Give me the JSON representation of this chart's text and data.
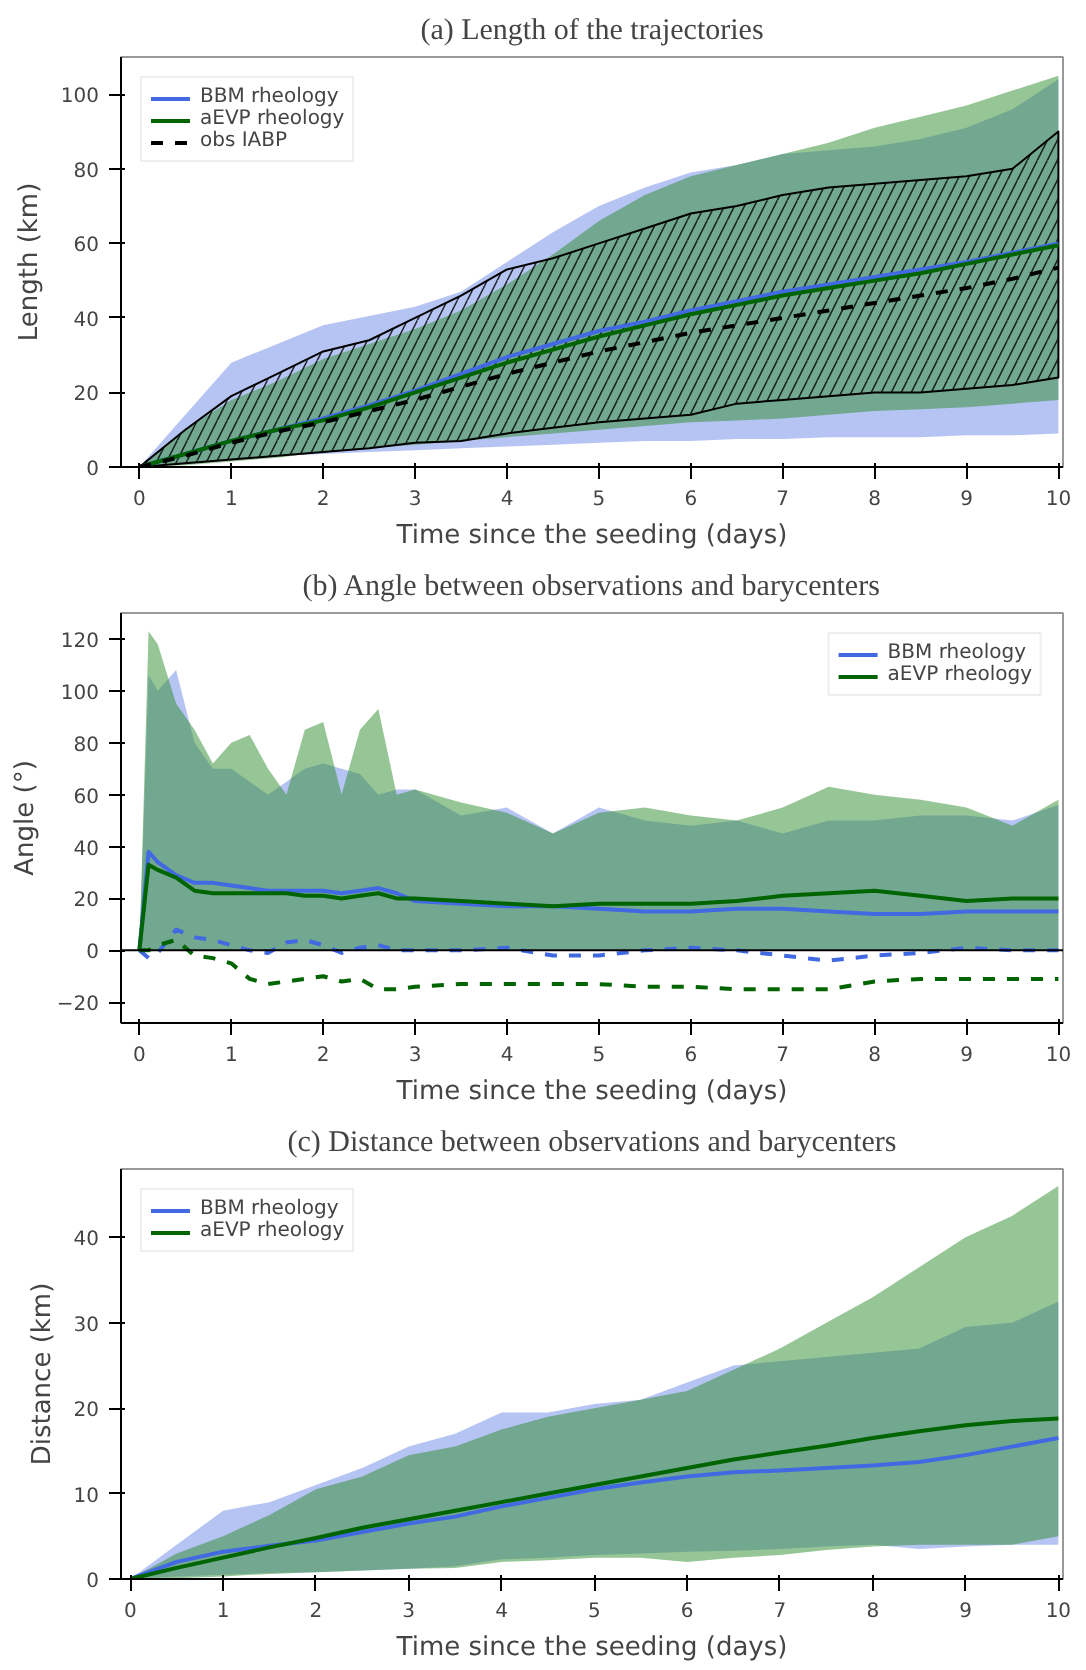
{
  "chart_data": [
    {
      "type": "line",
      "title": "(a) Length of the trajectories",
      "xlabel": "Time since the seeding (days)",
      "ylabel": "Length (km)",
      "xlim": [
        -0.2,
        10.05
      ],
      "ylim": [
        0,
        110
      ],
      "xticks": [
        0,
        1,
        2,
        3,
        4,
        5,
        6,
        7,
        8,
        9,
        10
      ],
      "yticks": [
        0,
        20,
        40,
        60,
        80,
        100
      ],
      "grid": false,
      "legend": "top left",
      "x": [
        0,
        0.5,
        1,
        1.5,
        2,
        2.5,
        3,
        3.5,
        4,
        4.5,
        5,
        5.5,
        6,
        6.5,
        7,
        7.5,
        8,
        8.5,
        9,
        9.5,
        10
      ],
      "series": [
        {
          "name": "BBM rheology",
          "color": "#4169e1",
          "line_style": "solid",
          "values": [
            0,
            3.5,
            7,
            10,
            13,
            16.5,
            20.5,
            25,
            29.5,
            33,
            36.5,
            39,
            42,
            44.5,
            47,
            49,
            51,
            53,
            55,
            57.5,
            60
          ],
          "lower": [
            0,
            1,
            2,
            3,
            3.5,
            4,
            4.5,
            5,
            5.5,
            6,
            6.5,
            7,
            7,
            7.5,
            7.5,
            8,
            8,
            8,
            8.5,
            8.5,
            9
          ],
          "upper": [
            0,
            14,
            28,
            33,
            38,
            40.5,
            43,
            47,
            55,
            63,
            70,
            75,
            79,
            81,
            84,
            85,
            86,
            88,
            91,
            96,
            104
          ]
        },
        {
          "name": "aEVP rheology",
          "color": "#006400",
          "line_style": "solid",
          "values": [
            0,
            3.5,
            7,
            10,
            12.5,
            16,
            20,
            24,
            28,
            31.5,
            35,
            38,
            41,
            43.5,
            46,
            48,
            50,
            52,
            54.5,
            57,
            59.5
          ],
          "lower": [
            0,
            0.5,
            1.5,
            2.5,
            4,
            5,
            6,
            7,
            8,
            9,
            10,
            11,
            12,
            12.5,
            13,
            14,
            15,
            15.5,
            16,
            17,
            18
          ],
          "upper": [
            0,
            10,
            18,
            23,
            29,
            33,
            37,
            42,
            49,
            57,
            66,
            73,
            78,
            81,
            84,
            87,
            91,
            94,
            97,
            101,
            105
          ]
        },
        {
          "name": "obs IABP",
          "color": "#000000",
          "line_style": "dashed",
          "values": [
            0,
            3,
            6.5,
            9.5,
            12,
            15,
            18,
            21.5,
            25,
            28,
            31,
            33.5,
            36,
            38,
            40,
            42,
            44,
            46,
            48,
            50.5,
            53.5
          ],
          "lower": [
            0,
            1,
            2,
            3,
            4,
            5,
            6.5,
            7,
            9,
            10.5,
            12,
            13,
            14,
            17,
            18,
            19,
            20,
            20,
            21,
            22,
            24
          ],
          "upper": [
            0,
            10,
            19,
            25,
            31,
            34,
            40,
            46,
            53,
            56,
            60,
            64,
            68,
            70,
            73,
            75,
            76,
            77,
            78,
            80,
            90
          ]
        }
      ]
    },
    {
      "type": "line",
      "title": "(b) Angle between observations and barycenters",
      "xlabel": "Time since the seeding (days)",
      "ylabel": "Angle (°)",
      "xlim": [
        -0.2,
        10.05
      ],
      "ylim": [
        -28,
        130
      ],
      "xticks": [
        0,
        1,
        2,
        3,
        4,
        5,
        6,
        7,
        8,
        9,
        10
      ],
      "yticks": [
        -20,
        0,
        20,
        40,
        60,
        80,
        100,
        120
      ],
      "grid": false,
      "legend": "top right",
      "ref_lines": [
        {
          "axis": "y",
          "value": 0,
          "color": "#000000",
          "line_style": "solid"
        }
      ],
      "x": [
        0,
        0.1,
        0.2,
        0.4,
        0.6,
        0.8,
        1,
        1.2,
        1.4,
        1.6,
        1.8,
        2,
        2.2,
        2.4,
        2.6,
        2.8,
        3,
        3.5,
        4,
        4.5,
        5,
        5.5,
        6,
        6.5,
        7,
        7.5,
        8,
        8.5,
        9,
        9.5,
        10
      ],
      "series": [
        {
          "name": "BBM rheology",
          "color": "#4169e1",
          "line_style": "solid",
          "values": [
            0,
            38,
            34,
            29,
            26,
            26,
            25,
            24,
            23,
            23,
            23,
            23,
            22,
            23,
            24,
            22,
            19,
            18,
            17,
            17,
            16,
            15,
            15,
            16,
            16,
            15,
            14,
            14,
            15,
            15,
            15
          ],
          "lower": [
            0,
            0,
            0,
            0,
            0,
            0,
            0,
            0,
            0,
            0,
            0,
            0,
            0,
            0,
            0,
            0,
            0,
            0,
            0,
            0,
            0,
            0,
            0,
            0,
            0,
            0,
            0,
            0,
            0,
            0,
            0
          ],
          "upper": [
            0,
            106,
            100,
            108,
            80,
            70,
            70,
            65,
            60,
            65,
            70,
            72,
            70,
            68,
            60,
            62,
            62,
            52,
            55,
            45,
            55,
            50,
            48,
            50,
            45,
            50,
            50,
            52,
            52,
            50,
            56
          ]
        },
        {
          "name": "aEVP rheology",
          "color": "#006400",
          "line_style": "solid",
          "values": [
            0,
            33,
            31,
            28,
            23,
            22,
            22,
            22,
            22,
            22,
            21,
            21,
            20,
            21,
            22,
            20,
            20,
            19,
            18,
            17,
            18,
            18,
            18,
            19,
            21,
            22,
            23,
            21,
            19,
            20,
            20
          ],
          "lower": [
            0,
            0,
            0,
            0,
            0,
            0,
            0,
            0,
            0,
            0,
            0,
            0,
            0,
            0,
            0,
            0,
            0,
            0,
            0,
            0,
            0,
            0,
            0,
            0,
            0,
            0,
            0,
            0,
            0,
            0,
            0
          ],
          "upper": [
            0,
            123,
            118,
            95,
            85,
            72,
            80,
            83,
            70,
            60,
            85,
            88,
            60,
            85,
            93,
            60,
            62,
            57,
            53,
            45,
            53,
            55,
            52,
            50,
            55,
            63,
            60,
            58,
            55,
            48,
            58
          ]
        },
        {
          "color": "#4169e1",
          "line_style": "dashed",
          "values": [
            0,
            -3,
            -1,
            8,
            5,
            4,
            2,
            0,
            -1,
            3,
            4,
            2,
            -1,
            1,
            2,
            0,
            0,
            0,
            1,
            -2,
            -2,
            0,
            1,
            0,
            -2,
            -4,
            -2,
            -1,
            1,
            0,
            0
          ]
        },
        {
          "color": "#006400",
          "line_style": "dashed",
          "values": [
            0,
            0,
            2,
            4,
            -2,
            -3,
            -5,
            -11,
            -13,
            -12,
            -11,
            -10,
            -12,
            -11,
            -15,
            -15,
            -14,
            -13,
            -13,
            -13,
            -13,
            -14,
            -14,
            -15,
            -15,
            -15,
            -12,
            -11,
            -11,
            -11,
            -11
          ]
        }
      ]
    },
    {
      "type": "line",
      "title": "(c) Distance between observations and barycenters",
      "xlabel": "Time since the seeding (days)",
      "ylabel": "Distance (km)",
      "xlim": [
        -0.1,
        10.05
      ],
      "ylim": [
        0,
        48
      ],
      "xticks": [
        0,
        1,
        2,
        3,
        4,
        5,
        6,
        7,
        8,
        9,
        10
      ],
      "yticks": [
        0,
        10,
        20,
        30,
        40
      ],
      "grid": false,
      "legend": "top left",
      "x": [
        0,
        0.5,
        1,
        1.5,
        2,
        2.5,
        3,
        3.5,
        4,
        4.5,
        5,
        5.5,
        6,
        6.5,
        7,
        7.5,
        8,
        8.5,
        9,
        9.5,
        10
      ],
      "series": [
        {
          "name": "BBM rheology",
          "color": "#4169e1",
          "line_style": "solid",
          "values": [
            0,
            2,
            3.2,
            3.9,
            4.5,
            5.5,
            6.5,
            7.3,
            8.5,
            9.5,
            10.5,
            11.3,
            12,
            12.5,
            12.7,
            13,
            13.3,
            13.7,
            14.5,
            15.5,
            16.5
          ],
          "lower": [
            0,
            0.3,
            0.5,
            0.7,
            0.8,
            1,
            1.2,
            1.5,
            2.3,
            2.5,
            2.8,
            3,
            3.2,
            3.3,
            3.5,
            3.8,
            4,
            3.5,
            3.8,
            4,
            4
          ],
          "upper": [
            0,
            4,
            8,
            9,
            11,
            13,
            15.5,
            17,
            19.5,
            19.5,
            20.5,
            21,
            23,
            25,
            25.5,
            26,
            26.5,
            27,
            29.5,
            30,
            32.5
          ]
        },
        {
          "name": "aEVP rheology",
          "color": "#006400",
          "line_style": "solid",
          "values": [
            0,
            1.3,
            2.5,
            3.7,
            4.8,
            6,
            7,
            8,
            9,
            10,
            11,
            12,
            13,
            14,
            14.8,
            15.6,
            16.5,
            17.3,
            18,
            18.5,
            18.8
          ],
          "lower": [
            0,
            0.1,
            0.3,
            0.6,
            0.8,
            1,
            1.2,
            1.3,
            2,
            2.2,
            2.5,
            2.5,
            2,
            2.5,
            2.8,
            3.4,
            3.8,
            4,
            4,
            4,
            5
          ],
          "upper": [
            0,
            3,
            5,
            7.5,
            10.5,
            12,
            14.5,
            15.5,
            17.5,
            19,
            20,
            21,
            22,
            24.5,
            27,
            30,
            33,
            36.5,
            40,
            42.5,
            46
          ]
        }
      ]
    }
  ]
}
